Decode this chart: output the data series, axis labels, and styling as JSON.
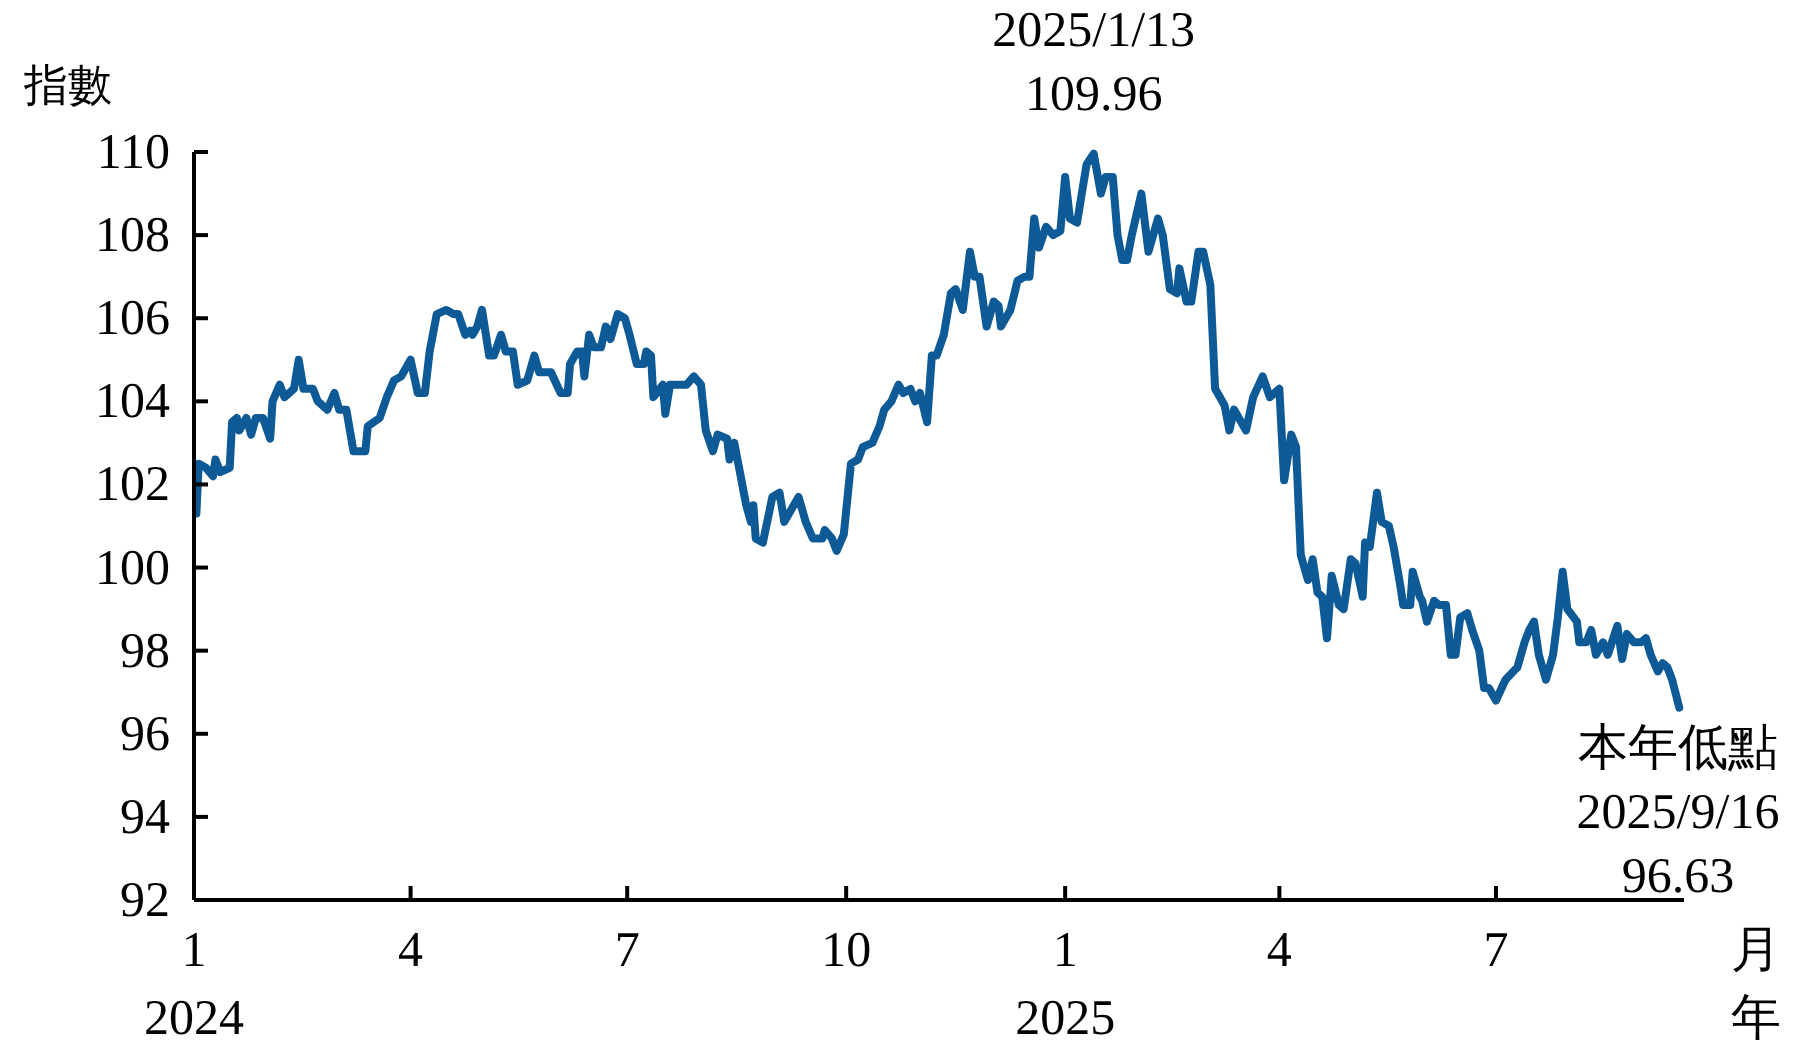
{
  "chart_data": {
    "type": "line",
    "ylabel": "指數",
    "xlabel": "月年",
    "xlim": [
      "2024-01-01",
      "2025-09-18"
    ],
    "xticks": [
      {
        "value": "2024-01-01",
        "label": "1\n2024"
      },
      {
        "value": "2024-04-01",
        "label": "4"
      },
      {
        "value": "2024-07-01",
        "label": "7"
      },
      {
        "value": "2024-10-01",
        "label": "10"
      },
      {
        "value": "2025-01-01",
        "label": "1\n2025"
      },
      {
        "value": "2025-04-01",
        "label": "4"
      },
      {
        "value": "2025-07-01",
        "label": "7"
      }
    ],
    "ylim": [
      92,
      110
    ],
    "yticks": [
      92,
      94,
      96,
      98,
      100,
      102,
      104,
      106,
      108,
      110
    ],
    "annotations": [
      {
        "text": "2025/1/13\n109.96",
        "x": "2025-01-13",
        "y": 109.96
      },
      {
        "text": "本年低點\n2025/9/16\n96.63",
        "x": "2025-09-16",
        "y": 96.63
      }
    ],
    "series": [
      {
        "color": "#0d5a96",
        "x": [
          "2024-01-02",
          "2024-01-03",
          "2024-01-06",
          "2024-01-09",
          "2024-01-10",
          "2024-01-12",
          "2024-01-16",
          "2024-01-17",
          "2024-01-19",
          "2024-01-20",
          "2024-01-23",
          "2024-01-25",
          "2024-01-27",
          "2024-01-30",
          "2024-02-02",
          "2024-02-03",
          "2024-02-06",
          "2024-02-08",
          "2024-02-12",
          "2024-02-14",
          "2024-02-16",
          "2024-02-20",
          "2024-02-22",
          "2024-02-26",
          "2024-02-29",
          "2024-03-02",
          "2024-03-05",
          "2024-03-08",
          "2024-03-11",
          "2024-03-13",
          "2024-03-14",
          "2024-03-19",
          "2024-03-22",
          "2024-03-25",
          "2024-03-28",
          "2024-04-01",
          "2024-04-04",
          "2024-04-07",
          "2024-04-09",
          "2024-04-12",
          "2024-04-16",
          "2024-04-19",
          "2024-04-21",
          "2024-04-24",
          "2024-04-26",
          "2024-04-27",
          "2024-04-29",
          "2024-05-01",
          "2024-05-04",
          "2024-05-06",
          "2024-05-09",
          "2024-05-11",
          "2024-05-14",
          "2024-05-16",
          "2024-05-20",
          "2024-05-23",
          "2024-05-25",
          "2024-05-30",
          "2024-06-03",
          "2024-06-06",
          "2024-06-07",
          "2024-06-10",
          "2024-06-12",
          "2024-06-13",
          "2024-06-15",
          "2024-06-17",
          "2024-06-20",
          "2024-06-22",
          "2024-06-24",
          "2024-06-27",
          "2024-06-30",
          "2024-07-02",
          "2024-07-05",
          "2024-07-08",
          "2024-07-09",
          "2024-07-11",
          "2024-07-12",
          "2024-07-16",
          "2024-07-17",
          "2024-07-19",
          "2024-07-25",
          "2024-07-26",
          "2024-07-29",
          "2024-08-01",
          "2024-08-03",
          "2024-08-06",
          "2024-08-08",
          "2024-08-12",
          "2024-08-13",
          "2024-08-15",
          "2024-08-17",
          "2024-08-20",
          "2024-08-22",
          "2024-08-23",
          "2024-08-24",
          "2024-08-27",
          "2024-08-31",
          "2024-09-03",
          "2024-09-05",
          "2024-09-07",
          "2024-09-11",
          "2024-09-14",
          "2024-09-17",
          "2024-09-21",
          "2024-09-22",
          "2024-09-25",
          "2024-09-27",
          "2024-09-30",
          "2024-10-03",
          "2024-10-06",
          "2024-10-08",
          "2024-10-12",
          "2024-10-15",
          "2024-10-17",
          "2024-10-20",
          "2024-10-23",
          "2024-10-25",
          "2024-10-28",
          "2024-10-30",
          "2024-11-01",
          "2024-11-04",
          "2024-11-06",
          "2024-11-08",
          "2024-11-11",
          "2024-11-14",
          "2024-11-16",
          "2024-11-19",
          "2024-11-22",
          "2024-11-24",
          "2024-11-26",
          "2024-11-29",
          "2024-12-02",
          "2024-12-04",
          "2024-12-05",
          "2024-12-09",
          "2024-12-12",
          "2024-12-15",
          "2024-12-17",
          "2024-12-19",
          "2024-12-21",
          "2024-12-24",
          "2024-12-27",
          "2024-12-30",
          "2025-01-01",
          "2025-01-03",
          "2025-01-06",
          "2025-01-10",
          "2025-01-13",
          "2025-01-16",
          "2025-01-18",
          "2025-01-21",
          "2025-01-23",
          "2025-01-25",
          "2025-01-27",
          "2025-01-29",
          "2025-02-02",
          "2025-02-05",
          "2025-02-09",
          "2025-02-11",
          "2025-02-14",
          "2025-02-17",
          "2025-02-18",
          "2025-02-21",
          "2025-02-23",
          "2025-02-26",
          "2025-02-28",
          "2025-03-03",
          "2025-03-05",
          "2025-03-09",
          "2025-03-11",
          "2025-03-13",
          "2025-03-18",
          "2025-03-21",
          "2025-03-25",
          "2025-03-28",
          "2025-04-01",
          "2025-04-03",
          "2025-04-06",
          "2025-04-08",
          "2025-04-10",
          "2025-04-13",
          "2025-04-15",
          "2025-04-17",
          "2025-04-19",
          "2025-04-21",
          "2025-04-23",
          "2025-04-26",
          "2025-04-28",
          "2025-05-01",
          "2025-05-03",
          "2025-05-06",
          "2025-05-07",
          "2025-05-09",
          "2025-05-12",
          "2025-05-14",
          "2025-05-17",
          "2025-05-19",
          "2025-05-22",
          "2025-05-23",
          "2025-05-26",
          "2025-05-27",
          "2025-05-30",
          "2025-05-31",
          "2025-06-02",
          "2025-06-05",
          "2025-06-07",
          "2025-06-10",
          "2025-06-12",
          "2025-06-14",
          "2025-06-16",
          "2025-06-19",
          "2025-06-21",
          "2025-06-24",
          "2025-06-26",
          "2025-06-28",
          "2025-07-01",
          "2025-07-05",
          "2025-07-10",
          "2025-07-13",
          "2025-07-15",
          "2025-07-17",
          "2025-07-19",
          "2025-07-22",
          "2025-07-25",
          "2025-07-27",
          "2025-07-29",
          "2025-07-31",
          "2025-08-04",
          "2025-08-05",
          "2025-08-08",
          "2025-08-10",
          "2025-08-12",
          "2025-08-15",
          "2025-08-17",
          "2025-08-21",
          "2025-08-23",
          "2025-08-25",
          "2025-08-28",
          "2025-08-31",
          "2025-09-02",
          "2025-09-04",
          "2025-09-07",
          "2025-09-09",
          "2025-09-11",
          "2025-09-13",
          "2025-09-16"
        ],
        "values": [
          101.3,
          102.5,
          102.4,
          102.2,
          102.6,
          102.3,
          102.4,
          103.5,
          103.6,
          103.3,
          103.6,
          103.2,
          103.6,
          103.6,
          103.1,
          104.0,
          104.4,
          104.1,
          104.3,
          105.0,
          104.3,
          104.3,
          104.0,
          103.8,
          104.2,
          103.8,
          103.8,
          102.8,
          102.8,
          102.8,
          103.4,
          103.6,
          104.1,
          104.5,
          104.6,
          105.0,
          104.2,
          104.2,
          105.2,
          106.1,
          106.2,
          106.1,
          106.1,
          105.6,
          105.7,
          105.6,
          105.8,
          106.2,
          105.1,
          105.1,
          105.6,
          105.2,
          105.2,
          104.4,
          104.5,
          105.1,
          104.7,
          104.7,
          104.2,
          104.2,
          104.9,
          105.2,
          105.2,
          104.6,
          105.6,
          105.3,
          105.3,
          105.8,
          105.5,
          106.1,
          106.0,
          105.6,
          104.9,
          104.9,
          105.2,
          105.1,
          104.1,
          104.4,
          103.7,
          104.4,
          104.4,
          104.4,
          104.6,
          104.4,
          103.3,
          102.8,
          103.2,
          103.1,
          102.6,
          103.0,
          102.4,
          101.5,
          101.1,
          101.5,
          100.7,
          100.6,
          101.7,
          101.8,
          101.1,
          101.3,
          101.7,
          101.1,
          100.7,
          100.7,
          100.9,
          100.7,
          100.4,
          100.8,
          102.5,
          102.6,
          102.9,
          103.0,
          103.4,
          103.8,
          104.0,
          104.4,
          104.2,
          104.3,
          104.0,
          104.2,
          103.5,
          105.1,
          105.1,
          105.6,
          106.6,
          106.7,
          106.2,
          107.6,
          107.0,
          107.0,
          105.8,
          106.4,
          106.3,
          105.8,
          106.2,
          106.9,
          107.0,
          107.0,
          108.4,
          107.7,
          108.2,
          108.0,
          108.1,
          109.4,
          108.4,
          108.3,
          109.7,
          109.96,
          109.0,
          109.4,
          109.4,
          108.0,
          107.4,
          107.4,
          108.0,
          109.0,
          107.6,
          108.4,
          108.0,
          106.7,
          106.6,
          107.2,
          106.4,
          106.4,
          107.6,
          107.6,
          106.8,
          104.3,
          103.9,
          103.3,
          103.8,
          103.3,
          104.1,
          104.6,
          104.1,
          104.3,
          102.1,
          103.2,
          102.9,
          100.3,
          99.7,
          100.2,
          99.4,
          99.3,
          98.3,
          99.8,
          99.1,
          99.0,
          100.2,
          100.1,
          99.3,
          100.6,
          100.5,
          101.8,
          101.1,
          101.0,
          100.5,
          99.5,
          99.1,
          99.1,
          99.9,
          99.3,
          99.2,
          98.7,
          99.2,
          99.1,
          99.1,
          97.9,
          97.9,
          98.8,
          98.9,
          98.5,
          98.0,
          97.1,
          97.1,
          96.8,
          97.3,
          97.6,
          98.2,
          98.5,
          98.7,
          97.9,
          97.3,
          97.9,
          98.8,
          99.9,
          99.0,
          98.7,
          98.2,
          98.2,
          98.5,
          97.9,
          98.2,
          97.9,
          98.6,
          97.8,
          98.4,
          98.2,
          98.2,
          98.3,
          97.9,
          97.5,
          97.7,
          97.6,
          97.3,
          96.63
        ]
      }
    ]
  }
}
